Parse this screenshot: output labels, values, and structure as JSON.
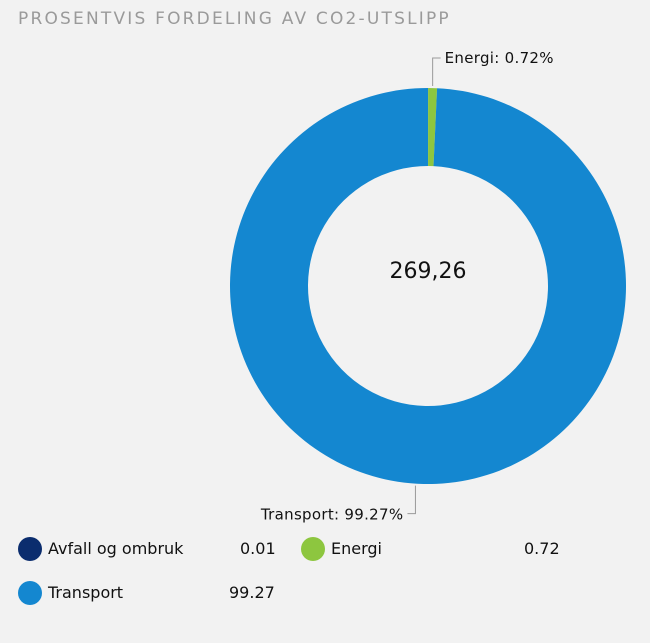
{
  "colors": {
    "background": "#f2f2f2",
    "title": "#9a9a9a",
    "transport": "#1487d0",
    "energi": "#8dc63f",
    "avfall": "#0b2d6e",
    "leader": "#9a9a9a"
  },
  "chart_data": {
    "type": "pie",
    "variant": "donut",
    "title": "PROSENTVIS FORDELING AV CO2-UTSLIPP",
    "center_label": "269,26",
    "categories": [
      "Avfall og ombruk",
      "Energi",
      "Transport"
    ],
    "values": [
      0.01,
      0.72,
      99.27
    ],
    "unit": "%",
    "data_labels": [
      {
        "category": "Energi",
        "text": "Energi: 0.72%"
      },
      {
        "category": "Transport",
        "text": "Transport: 99.27%"
      }
    ],
    "legend": {
      "placement": "bottom",
      "items": [
        {
          "label": "Avfall og ombruk",
          "value": "0.01",
          "color": "#0b2d6e"
        },
        {
          "label": "Energi",
          "value": "0.72",
          "color": "#8dc63f"
        },
        {
          "label": "Transport",
          "value": "99.27",
          "color": "#1487d0"
        }
      ]
    }
  }
}
